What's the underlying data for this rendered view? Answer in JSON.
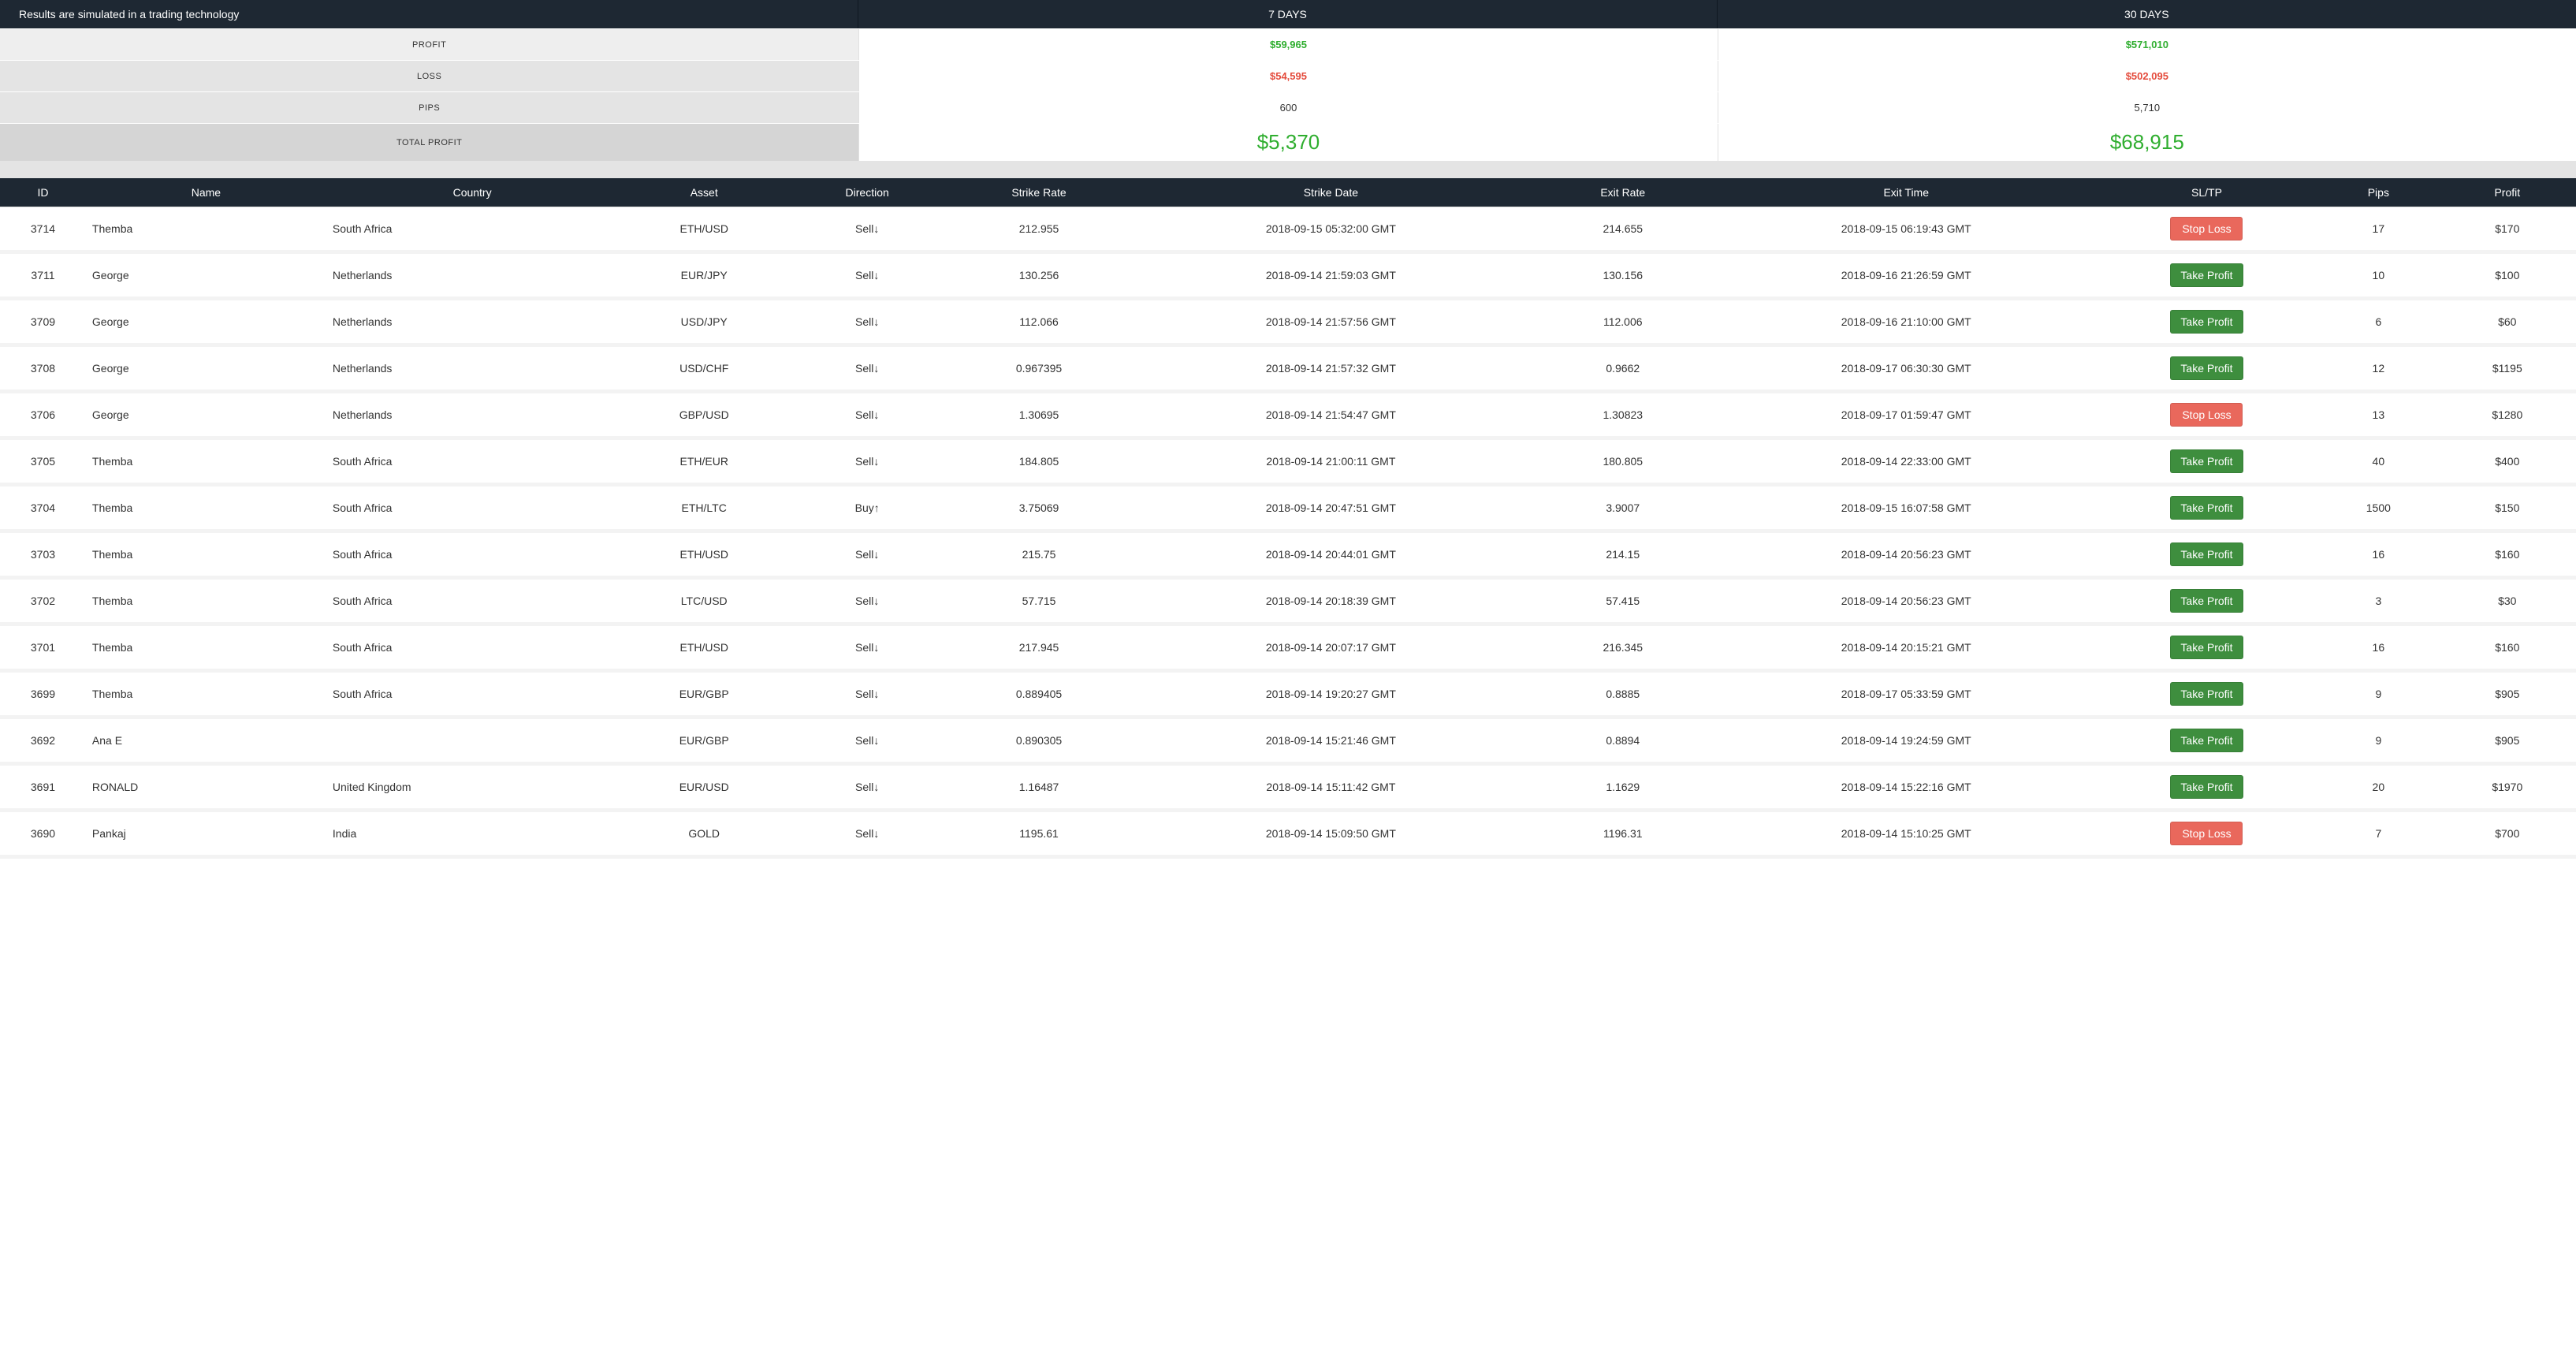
{
  "header": {
    "disclaimer": "Results are simulated in a trading technology",
    "col7": "7 DAYS",
    "col30": "30 DAYS"
  },
  "summary": {
    "profit_label": "PROFIT",
    "profit_7d": "$59,965",
    "profit_30d": "$571,010",
    "loss_label": "LOSS",
    "loss_7d": "$54,595",
    "loss_30d": "$502,095",
    "pips_label": "PIPS",
    "pips_7d": "600",
    "pips_30d": "5,710",
    "total_label": "TOTAL PROFIT",
    "total_7d": "$5,370",
    "total_30d": "$68,915"
  },
  "columns": {
    "id": "ID",
    "name": "Name",
    "country": "Country",
    "asset": "Asset",
    "direction": "Direction",
    "strike_rate": "Strike Rate",
    "strike_date": "Strike Date",
    "exit_rate": "Exit Rate",
    "exit_time": "Exit Time",
    "sltp": "SL/TP",
    "pips": "Pips",
    "profit": "Profit"
  },
  "badges": {
    "take": "Take Profit",
    "stop": "Stop Loss"
  },
  "direction_labels": {
    "buy": "Buy",
    "sell": "Sell"
  },
  "rows": [
    {
      "id": "3714",
      "name": "Themba",
      "country": "South Africa",
      "asset": "ETH/USD",
      "dir": "sell",
      "strike": "212.955",
      "sdate": "2018-09-15 05:32:00 GMT",
      "exit": "214.655",
      "etime": "2018-09-15 06:19:43 GMT",
      "sltp": "stop",
      "pips": "17",
      "profit": "$170"
    },
    {
      "id": "3711",
      "name": "George",
      "country": "Netherlands",
      "asset": "EUR/JPY",
      "dir": "sell",
      "strike": "130.256",
      "sdate": "2018-09-14 21:59:03 GMT",
      "exit": "130.156",
      "etime": "2018-09-16 21:26:59 GMT",
      "sltp": "take",
      "pips": "10",
      "profit": "$100"
    },
    {
      "id": "3709",
      "name": "George",
      "country": "Netherlands",
      "asset": "USD/JPY",
      "dir": "sell",
      "strike": "112.066",
      "sdate": "2018-09-14 21:57:56 GMT",
      "exit": "112.006",
      "etime": "2018-09-16 21:10:00 GMT",
      "sltp": "take",
      "pips": "6",
      "profit": "$60"
    },
    {
      "id": "3708",
      "name": "George",
      "country": "Netherlands",
      "asset": "USD/CHF",
      "dir": "sell",
      "strike": "0.967395",
      "sdate": "2018-09-14 21:57:32 GMT",
      "exit": "0.9662",
      "etime": "2018-09-17 06:30:30 GMT",
      "sltp": "take",
      "pips": "12",
      "profit": "$1195"
    },
    {
      "id": "3706",
      "name": "George",
      "country": "Netherlands",
      "asset": "GBP/USD",
      "dir": "sell",
      "strike": "1.30695",
      "sdate": "2018-09-14 21:54:47 GMT",
      "exit": "1.30823",
      "etime": "2018-09-17 01:59:47 GMT",
      "sltp": "stop",
      "pips": "13",
      "profit": "$1280"
    },
    {
      "id": "3705",
      "name": "Themba",
      "country": "South Africa",
      "asset": "ETH/EUR",
      "dir": "sell",
      "strike": "184.805",
      "sdate": "2018-09-14 21:00:11 GMT",
      "exit": "180.805",
      "etime": "2018-09-14 22:33:00 GMT",
      "sltp": "take",
      "pips": "40",
      "profit": "$400"
    },
    {
      "id": "3704",
      "name": "Themba",
      "country": "South Africa",
      "asset": "ETH/LTC",
      "dir": "buy",
      "strike": "3.75069",
      "sdate": "2018-09-14 20:47:51 GMT",
      "exit": "3.9007",
      "etime": "2018-09-15 16:07:58 GMT",
      "sltp": "take",
      "pips": "1500",
      "profit": "$150"
    },
    {
      "id": "3703",
      "name": "Themba",
      "country": "South Africa",
      "asset": "ETH/USD",
      "dir": "sell",
      "strike": "215.75",
      "sdate": "2018-09-14 20:44:01 GMT",
      "exit": "214.15",
      "etime": "2018-09-14 20:56:23 GMT",
      "sltp": "take",
      "pips": "16",
      "profit": "$160"
    },
    {
      "id": "3702",
      "name": "Themba",
      "country": "South Africa",
      "asset": "LTC/USD",
      "dir": "sell",
      "strike": "57.715",
      "sdate": "2018-09-14 20:18:39 GMT",
      "exit": "57.415",
      "etime": "2018-09-14 20:56:23 GMT",
      "sltp": "take",
      "pips": "3",
      "profit": "$30"
    },
    {
      "id": "3701",
      "name": "Themba",
      "country": "South Africa",
      "asset": "ETH/USD",
      "dir": "sell",
      "strike": "217.945",
      "sdate": "2018-09-14 20:07:17 GMT",
      "exit": "216.345",
      "etime": "2018-09-14 20:15:21 GMT",
      "sltp": "take",
      "pips": "16",
      "profit": "$160"
    },
    {
      "id": "3699",
      "name": "Themba",
      "country": "South Africa",
      "asset": "EUR/GBP",
      "dir": "sell",
      "strike": "0.889405",
      "sdate": "2018-09-14 19:20:27 GMT",
      "exit": "0.8885",
      "etime": "2018-09-17 05:33:59 GMT",
      "sltp": "take",
      "pips": "9",
      "profit": "$905"
    },
    {
      "id": "3692",
      "name": "Ana E",
      "country": "",
      "asset": "EUR/GBP",
      "dir": "sell",
      "strike": "0.890305",
      "sdate": "2018-09-14 15:21:46 GMT",
      "exit": "0.8894",
      "etime": "2018-09-14 19:24:59 GMT",
      "sltp": "take",
      "pips": "9",
      "profit": "$905"
    },
    {
      "id": "3691",
      "name": "RONALD",
      "country": "United Kingdom",
      "asset": "EUR/USD",
      "dir": "sell",
      "strike": "1.16487",
      "sdate": "2018-09-14 15:11:42 GMT",
      "exit": "1.1629",
      "etime": "2018-09-14 15:22:16 GMT",
      "sltp": "take",
      "pips": "20",
      "profit": "$1970"
    },
    {
      "id": "3690",
      "name": "Pankaj",
      "country": "India",
      "asset": "GOLD",
      "dir": "sell",
      "strike": "1195.61",
      "sdate": "2018-09-14 15:09:50 GMT",
      "exit": "1196.31",
      "etime": "2018-09-14 15:10:25 GMT",
      "sltp": "stop",
      "pips": "7",
      "profit": "$700"
    }
  ]
}
